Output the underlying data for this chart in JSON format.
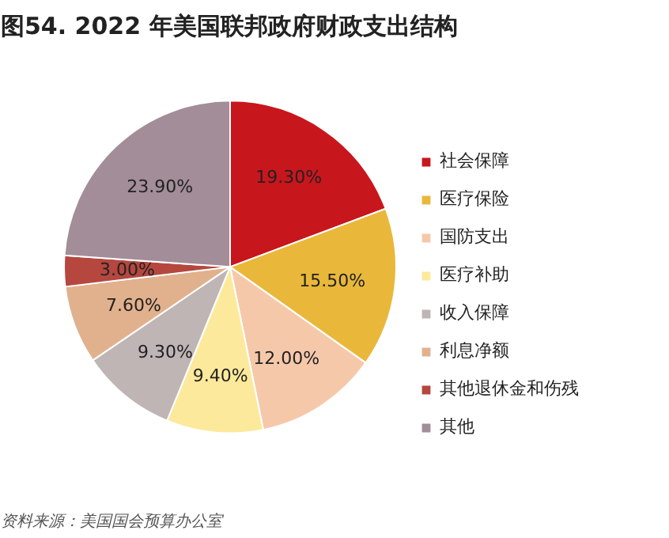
{
  "chart_data": {
    "type": "pie",
    "title": "图54. 2022 年美国联邦政府财政支出结构",
    "categories": [
      "社会保障",
      "医疗保险",
      "国防支出",
      "医疗补助",
      "收入保障",
      "利息净额",
      "其他退休金和伤残",
      "其他"
    ],
    "values": [
      19.3,
      15.5,
      12.0,
      9.4,
      9.3,
      7.6,
      3.0,
      23.9
    ],
    "value_labels": [
      "19.30%",
      "15.50%",
      "12.00%",
      "9.40%",
      "9.30%",
      "7.60%",
      "3.00%",
      "23.90%"
    ],
    "colors": [
      "#c8161d",
      "#e9b83b",
      "#f6c8aa",
      "#fde99b",
      "#bfb5b5",
      "#e1b18d",
      "#b5473f",
      "#a28d98"
    ],
    "legend": "right",
    "annotations": [
      "资料来源：美国国会预算办公室"
    ]
  }
}
